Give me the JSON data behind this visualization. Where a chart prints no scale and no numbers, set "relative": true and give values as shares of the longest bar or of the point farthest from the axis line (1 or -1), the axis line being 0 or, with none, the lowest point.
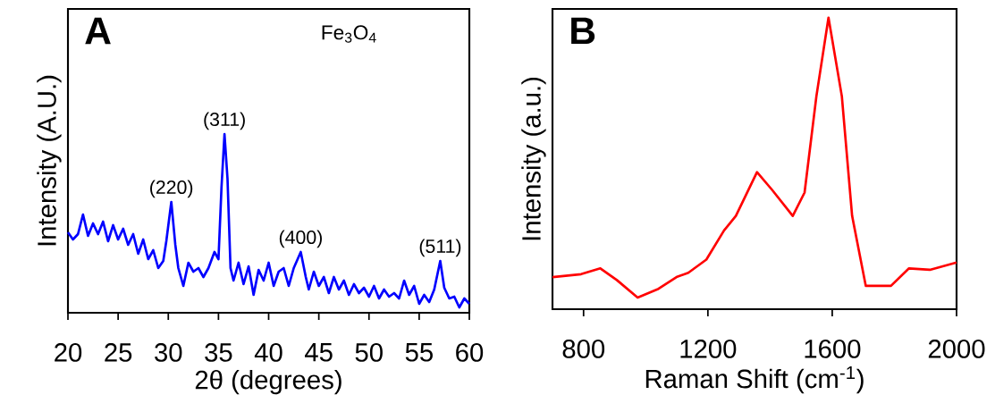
{
  "chart_data": [
    {
      "type": "line",
      "title": "A",
      "relative": true,
      "xlabel": "2θ (degrees)",
      "ylabel": "Intensity (A.U.)",
      "xlim": [
        20,
        60
      ],
      "xticks": [
        20,
        25,
        30,
        35,
        40,
        45,
        50,
        55,
        60
      ],
      "tick_labels": "x",
      "annotations": [
        "Fe$_{3}$O$_{4}$",
        {
          "text": "(220)",
          "x": 30.3,
          "y": 0.62
        },
        {
          "text": "(311)",
          "x": 35.6,
          "y": 1.0
        },
        {
          "text": "(400)",
          "x": 43.2,
          "y": 0.34
        },
        {
          "text": "(511)",
          "x": 57.1,
          "y": 0.29
        }
      ],
      "x": [
        20,
        20.5,
        21,
        21.5,
        22,
        22.5,
        23,
        23.5,
        24,
        24.5,
        25,
        25.5,
        26,
        26.5,
        27,
        27.5,
        28,
        28.5,
        29,
        29.5,
        29.8,
        30.3,
        30.7,
        31,
        31.5,
        32,
        32.5,
        33,
        33.5,
        34,
        34.6,
        35,
        35.3,
        35.6,
        35.9,
        36.2,
        36.5,
        37,
        37.5,
        38,
        38.5,
        39,
        39.5,
        40,
        40.5,
        41,
        41.5,
        42,
        42.5,
        43.2,
        43.7,
        44,
        44.5,
        45,
        45.5,
        46,
        46.5,
        47,
        47.5,
        48,
        48.5,
        49,
        49.5,
        50,
        50.5,
        51,
        51.5,
        52,
        52.5,
        53,
        53.5,
        54,
        54.5,
        55,
        55.5,
        56,
        56.5,
        57.1,
        57.5,
        58,
        58.5,
        59,
        59.5,
        60
      ],
      "series": [
        {
          "color": "#0000ff",
          "values": [
            0.45,
            0.41,
            0.44,
            0.55,
            0.43,
            0.5,
            0.44,
            0.51,
            0.4,
            0.49,
            0.41,
            0.47,
            0.38,
            0.44,
            0.33,
            0.41,
            0.3,
            0.35,
            0.25,
            0.29,
            0.4,
            0.62,
            0.38,
            0.25,
            0.15,
            0.28,
            0.23,
            0.25,
            0.2,
            0.25,
            0.34,
            0.3,
            0.7,
            1.0,
            0.75,
            0.25,
            0.18,
            0.28,
            0.16,
            0.26,
            0.1,
            0.24,
            0.18,
            0.28,
            0.15,
            0.23,
            0.25,
            0.15,
            0.25,
            0.34,
            0.2,
            0.13,
            0.23,
            0.15,
            0.2,
            0.11,
            0.2,
            0.13,
            0.18,
            0.1,
            0.16,
            0.11,
            0.14,
            0.09,
            0.15,
            0.08,
            0.13,
            0.09,
            0.11,
            0.08,
            0.18,
            0.1,
            0.15,
            0.05,
            0.1,
            0.06,
            0.13,
            0.29,
            0.14,
            0.08,
            0.09,
            0.03,
            0.08,
            0.05
          ]
        }
      ]
    },
    {
      "type": "line",
      "title": "B",
      "relative": true,
      "xlabel": "Raman Shift (cm$^{-1}$)",
      "ylabel": "Intensity (a.u.)",
      "xlim": [
        700,
        2000
      ],
      "xticks": [
        800,
        1200,
        1600,
        2000
      ],
      "tick_labels": "x",
      "x": [
        700,
        792,
        854,
        907,
        974,
        1041,
        1099,
        1137,
        1195,
        1252,
        1290,
        1358,
        1406,
        1473,
        1511,
        1549,
        1588,
        1631,
        1664,
        1708,
        1751,
        1789,
        1847,
        1914,
        2000
      ],
      "series": [
        {
          "color": "#ff0000",
          "values": [
            0.11,
            0.12,
            0.14,
            0.1,
            0.04,
            0.07,
            0.11,
            0.125,
            0.17,
            0.27,
            0.32,
            0.47,
            0.41,
            0.32,
            0.4,
            0.73,
            1.0,
            0.73,
            0.32,
            0.08,
            0.08,
            0.08,
            0.14,
            0.135,
            0.16
          ]
        }
      ]
    }
  ]
}
